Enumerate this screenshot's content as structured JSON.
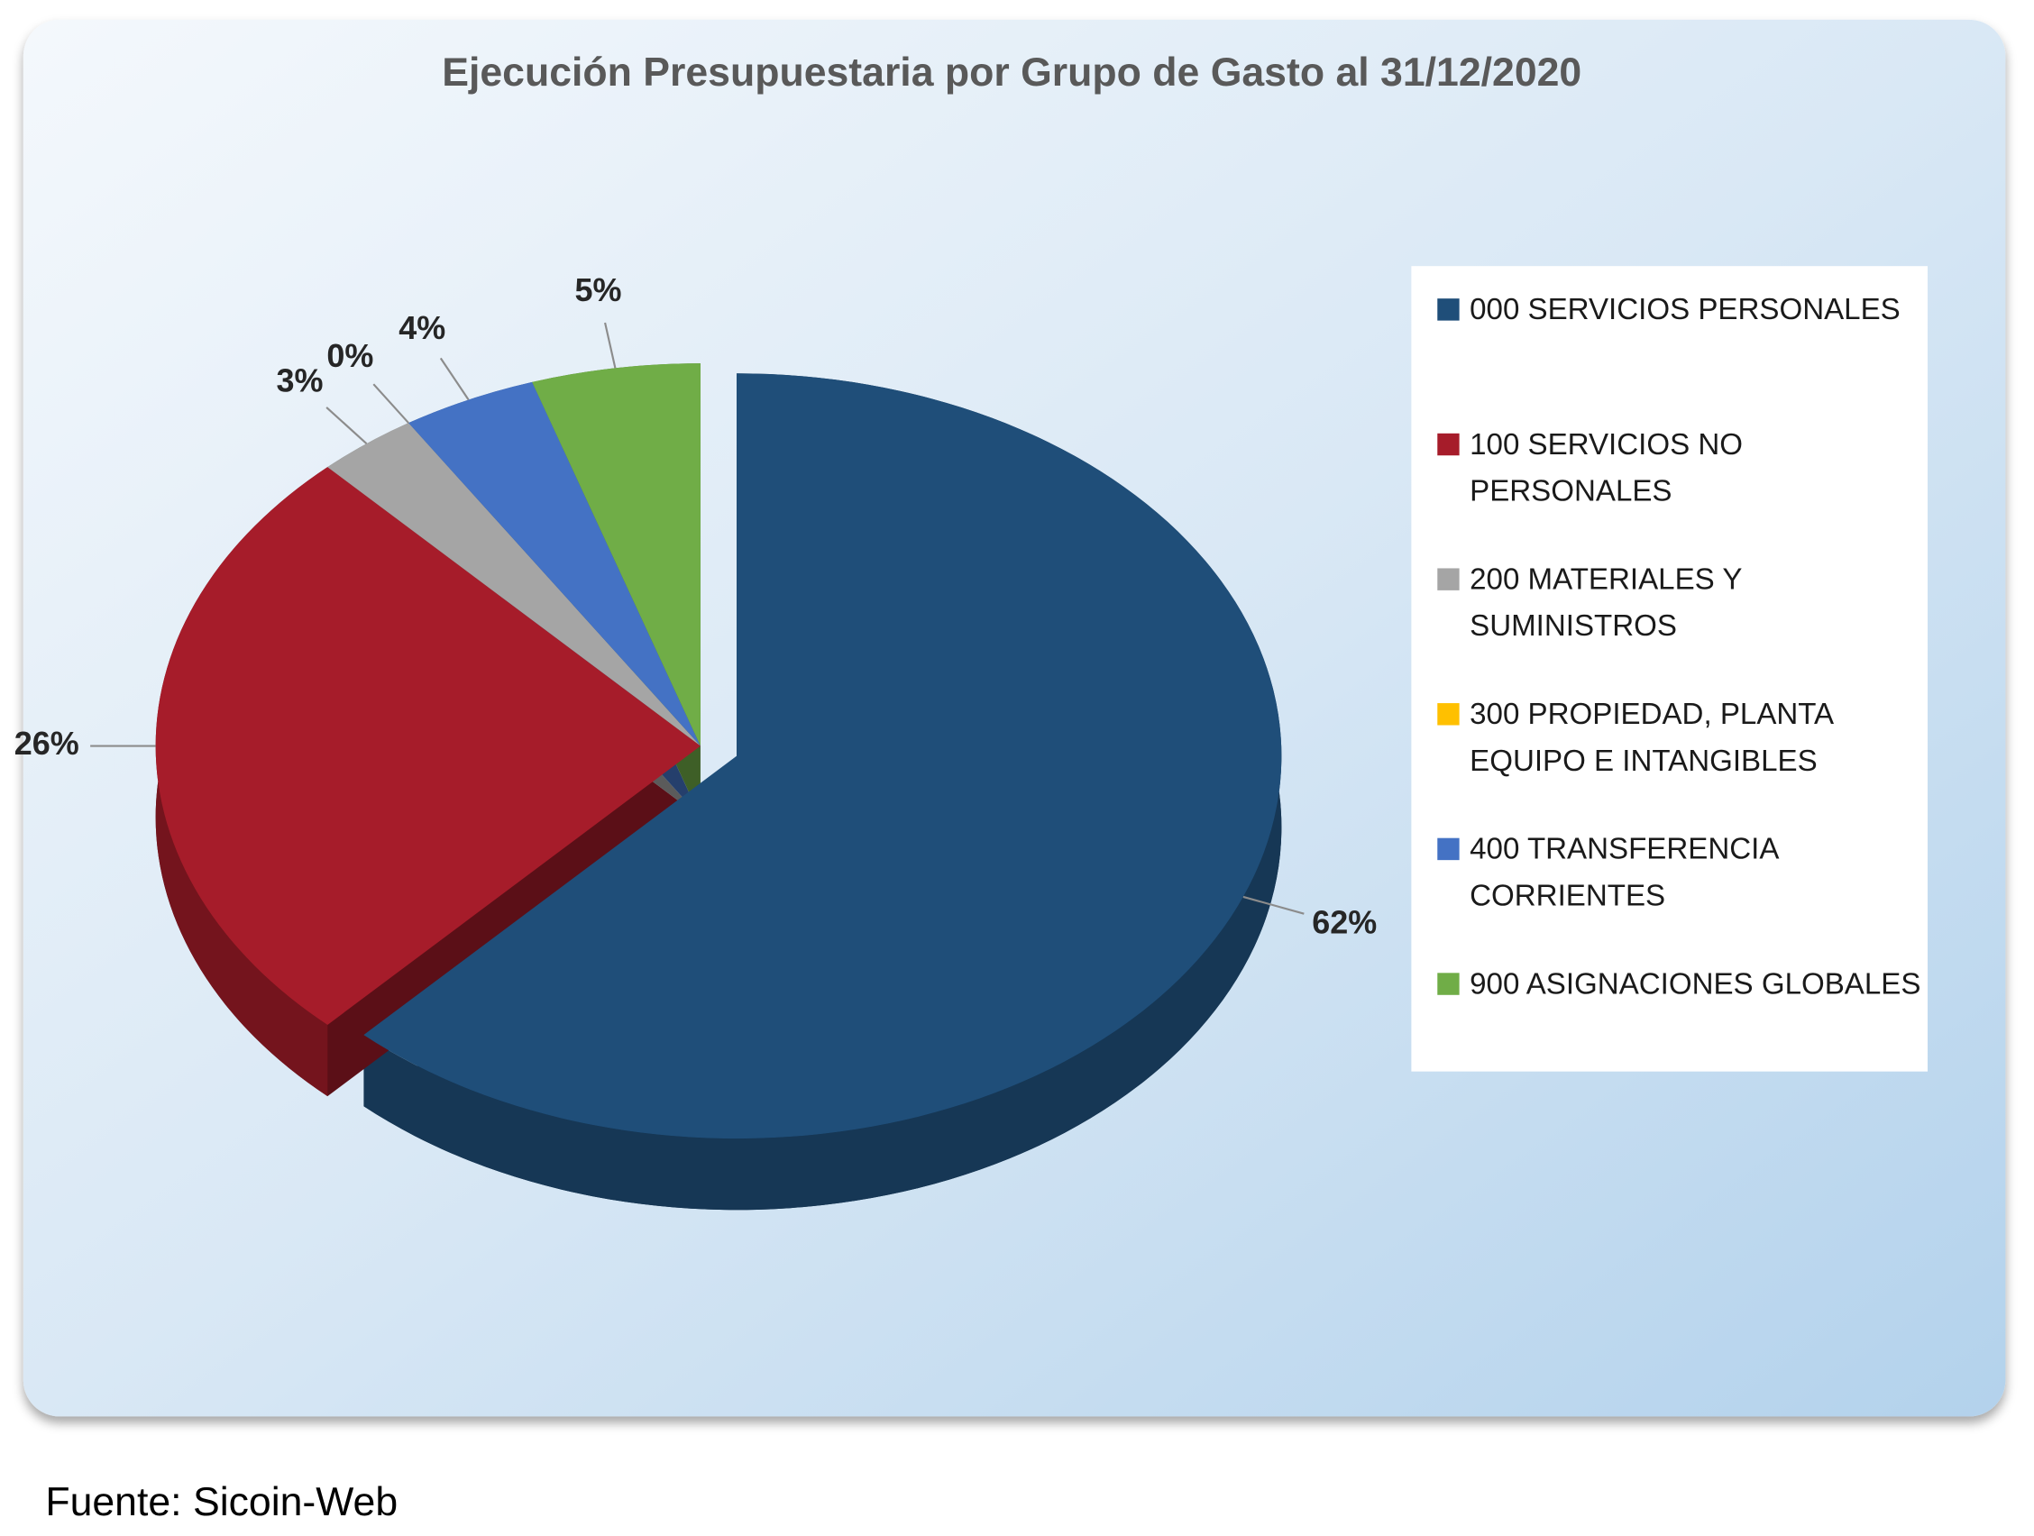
{
  "chart_data": {
    "type": "pie",
    "title": "Ejecución Presupuestaria por Grupo de Gasto al 31/12/2020",
    "categories": [
      "000 SERVICIOS PERSONALES",
      "100 SERVICIOS NO PERSONALES",
      "200 MATERIALES Y SUMINISTROS",
      "300 PROPIEDAD, PLANTA EQUIPO E INTANGIBLES",
      "400 TRANSFERENCIA CORRIENTES",
      "900 ASIGNACIONES GLOBALES"
    ],
    "values": [
      62,
      26,
      3,
      0,
      4,
      5
    ],
    "value_labels": [
      "62%",
      "26%",
      "3%",
      "0%",
      "4%",
      "5%"
    ],
    "colors": [
      "#1f4e79",
      "#a61c2a",
      "#a5a5a5",
      "#ffc000",
      "#4472c4",
      "#70ad47"
    ],
    "legend": "right",
    "source": "Fuente: Sicoin-Web"
  }
}
